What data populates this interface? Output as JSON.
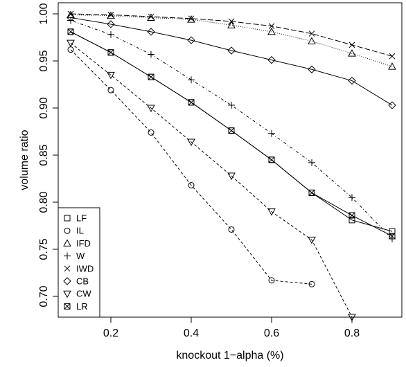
{
  "chart_data": {
    "type": "line",
    "title": "",
    "xlabel": "knockout 1−alpha (%)",
    "ylabel": "volume ratio",
    "xlim": [
      0.1,
      0.9
    ],
    "ylim": [
      0.675,
      1.0
    ],
    "xticks": [
      0.2,
      0.4,
      0.6,
      0.8
    ],
    "yticks": [
      0.7,
      0.75,
      0.8,
      0.85,
      0.9,
      0.95,
      1.0
    ],
    "xtick_labels": [
      "0.2",
      "0.4",
      "0.6",
      "0.8"
    ],
    "ytick_labels": [
      "0.70",
      "0.75",
      "0.80",
      "0.85",
      "0.90",
      "0.95",
      "1.00"
    ],
    "legend_position": "bottom-left",
    "grid": false,
    "x": [
      0.1,
      0.2,
      0.3,
      0.4,
      0.5,
      0.6,
      0.7,
      0.8,
      0.9
    ],
    "series": [
      {
        "name": "LF",
        "marker": "square",
        "dash": "solid",
        "values": [
          0.981,
          0.959,
          0.933,
          0.906,
          0.876,
          0.845,
          0.81,
          0.781,
          0.769
        ]
      },
      {
        "name": "IL",
        "marker": "circle",
        "dash": "dashed",
        "values": [
          0.962,
          0.919,
          0.874,
          0.818,
          0.771,
          0.717,
          0.713,
          null,
          null
        ]
      },
      {
        "name": "IFD",
        "marker": "triangle-up",
        "dash": "dotted",
        "values": [
          0.999,
          0.998,
          0.996,
          0.994,
          0.988,
          0.981,
          0.971,
          0.958,
          0.944
        ]
      },
      {
        "name": "W",
        "marker": "plus",
        "dash": "dotdash",
        "values": [
          0.993,
          0.978,
          0.957,
          0.93,
          0.903,
          0.873,
          0.842,
          0.805,
          0.761
        ]
      },
      {
        "name": "IWD",
        "marker": "cross",
        "dash": "longdash",
        "values": [
          1.0,
          0.999,
          0.997,
          0.995,
          0.992,
          0.987,
          0.979,
          0.967,
          0.955
        ]
      },
      {
        "name": "CB",
        "marker": "diamond",
        "dash": "solid",
        "values": [
          0.996,
          0.989,
          0.981,
          0.972,
          0.961,
          0.951,
          0.941,
          0.929,
          0.903
        ]
      },
      {
        "name": "CW",
        "marker": "triangle-down",
        "dash": "dashed",
        "values": [
          0.969,
          0.935,
          0.9,
          0.864,
          0.828,
          0.79,
          0.76,
          0.678,
          null
        ]
      },
      {
        "name": "LR",
        "marker": "square-x",
        "dash": "solid",
        "values": [
          0.981,
          0.959,
          0.933,
          0.906,
          0.876,
          0.845,
          0.81,
          0.786,
          0.764
        ]
      }
    ]
  }
}
